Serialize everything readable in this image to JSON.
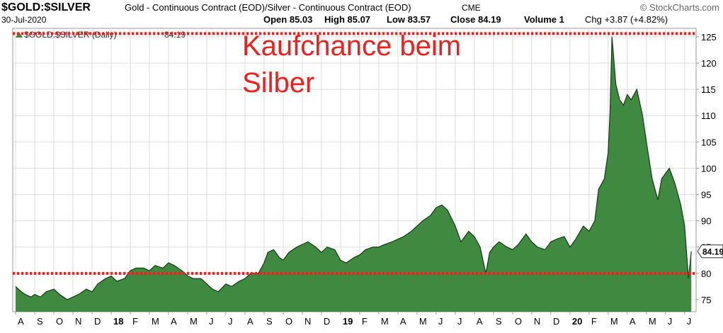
{
  "header": {
    "symbol": "$GOLD:$SILVER",
    "description": "Gold - Continuous Contract (EOD)/Silver - Continuous Contract (EOD)",
    "exchange": "CME",
    "date": "30-Jul-2020",
    "quote": [
      "Open 85.03",
      "High 85.07",
      "Low 83.57",
      "Close 84.19",
      "Volume 1",
      "Chg +3.87 (+4.82%)"
    ],
    "source": "© StockCharts.com"
  },
  "chart_data": {
    "type": "area",
    "annotation": [
      "Kaufchance beim",
      "Silber"
    ],
    "x": [
      0,
      0.3,
      0.5,
      0.8,
      1.0,
      1.3,
      1.6,
      2.0,
      2.3,
      2.7,
      3.0,
      3.3,
      3.7,
      4.0,
      4.3,
      4.7,
      5.0,
      5.3,
      5.7,
      6.0,
      6.3,
      6.7,
      7.0,
      7.3,
      7.7,
      8.0,
      8.3,
      8.7,
      9.0,
      9.3,
      9.7,
      10.0,
      10.3,
      10.6,
      11.0,
      11.3,
      11.7,
      12.0,
      12.3,
      12.7,
      13.0,
      13.2,
      13.5,
      13.8,
      14.0,
      14.3,
      14.7,
      15.0,
      15.3,
      15.7,
      16.0,
      16.3,
      16.7,
      17.0,
      17.3,
      17.7,
      18.0,
      18.3,
      18.7,
      19.0,
      19.3,
      19.7,
      20.0,
      20.3,
      20.7,
      21.0,
      21.3,
      21.7,
      22.0,
      22.3,
      22.6,
      23.0,
      23.3,
      23.7,
      24.0,
      24.3,
      24.6,
      24.8,
      25.0,
      25.3,
      25.7,
      26.0,
      26.3,
      26.7,
      27.0,
      27.3,
      27.7,
      28.0,
      28.3,
      28.7,
      29.0,
      29.3,
      29.7,
      30.0,
      30.3,
      30.5,
      30.8,
      31.0,
      31.1,
      31.2,
      31.4,
      31.6,
      31.8,
      32.0,
      32.2,
      32.5,
      32.8,
      33.0,
      33.3,
      33.6,
      33.8,
      34.0,
      34.2,
      34.5,
      34.8,
      35.0,
      35.2,
      35.35
    ],
    "series": [
      {
        "name": "$GOLD:$SILVER (Daily)",
        "color": "#3f8a40",
        "values": [
          77.5,
          76.5,
          76,
          75.5,
          76,
          75.5,
          76.5,
          77,
          76,
          75,
          75.5,
          76,
          77,
          76.5,
          78,
          79,
          79.5,
          78.5,
          79,
          80.5,
          81,
          81,
          80.5,
          81.5,
          81,
          82,
          81.5,
          80.5,
          79.5,
          79,
          79,
          78,
          77,
          76.5,
          78,
          77.5,
          78.5,
          79,
          80,
          80,
          82,
          84,
          84.5,
          83,
          82.5,
          84,
          85,
          85.5,
          86,
          85,
          84,
          85,
          84.5,
          82.5,
          82,
          83,
          83.5,
          84.5,
          85,
          85,
          85.5,
          86,
          86.5,
          87,
          88,
          89,
          90,
          91,
          92.5,
          93,
          92,
          89,
          86,
          88,
          87,
          85,
          80,
          84,
          85,
          86,
          85,
          84.5,
          85.5,
          87.5,
          86,
          85,
          84.5,
          86,
          86.5,
          87,
          85,
          86.5,
          89,
          88,
          90,
          96,
          98,
          103,
          111,
          125,
          116,
          113,
          112,
          114,
          113,
          115,
          110,
          105,
          98,
          94,
          98,
          99,
          100,
          97,
          93,
          89,
          79,
          84.19
        ]
      }
    ],
    "reference_lines": [
      125.6,
      80
    ],
    "reference_color": "#e8231f",
    "xlim": [
      -0.15,
      35.6
    ],
    "xticks": [
      {
        "value": 0,
        "label": "A"
      },
      {
        "value": 1,
        "label": "S"
      },
      {
        "value": 2,
        "label": "O"
      },
      {
        "value": 3,
        "label": "N"
      },
      {
        "value": 4,
        "label": "D"
      },
      {
        "value": 5,
        "label": "18"
      },
      {
        "value": 6,
        "label": "F"
      },
      {
        "value": 7,
        "label": "M"
      },
      {
        "value": 8,
        "label": "A"
      },
      {
        "value": 9,
        "label": "M"
      },
      {
        "value": 10,
        "label": "J"
      },
      {
        "value": 11,
        "label": "J"
      },
      {
        "value": 12,
        "label": "A"
      },
      {
        "value": 13,
        "label": "S"
      },
      {
        "value": 14,
        "label": "O"
      },
      {
        "value": 15,
        "label": "N"
      },
      {
        "value": 16,
        "label": "D"
      },
      {
        "value": 17,
        "label": "19"
      },
      {
        "value": 18,
        "label": "F"
      },
      {
        "value": 19,
        "label": "M"
      },
      {
        "value": 20,
        "label": "A"
      },
      {
        "value": 21,
        "label": "M"
      },
      {
        "value": 22,
        "label": "J"
      },
      {
        "value": 23,
        "label": "J"
      },
      {
        "value": 24,
        "label": "A"
      },
      {
        "value": 25,
        "label": "S"
      },
      {
        "value": 26,
        "label": "O"
      },
      {
        "value": 27,
        "label": "N"
      },
      {
        "value": 28,
        "label": "D"
      },
      {
        "value": 29,
        "label": "20"
      },
      {
        "value": 30,
        "label": "F"
      },
      {
        "value": 31,
        "label": "M"
      },
      {
        "value": 32,
        "label": "A"
      },
      {
        "value": 33,
        "label": "M"
      },
      {
        "value": 34,
        "label": "J"
      },
      {
        "value": 35,
        "label": "J"
      }
    ],
    "ylim": [
      72.7,
      126.6
    ],
    "yticks": [
      75,
      80,
      85,
      90,
      95,
      100,
      105,
      110,
      115,
      120,
      125
    ],
    "grid": true
  }
}
